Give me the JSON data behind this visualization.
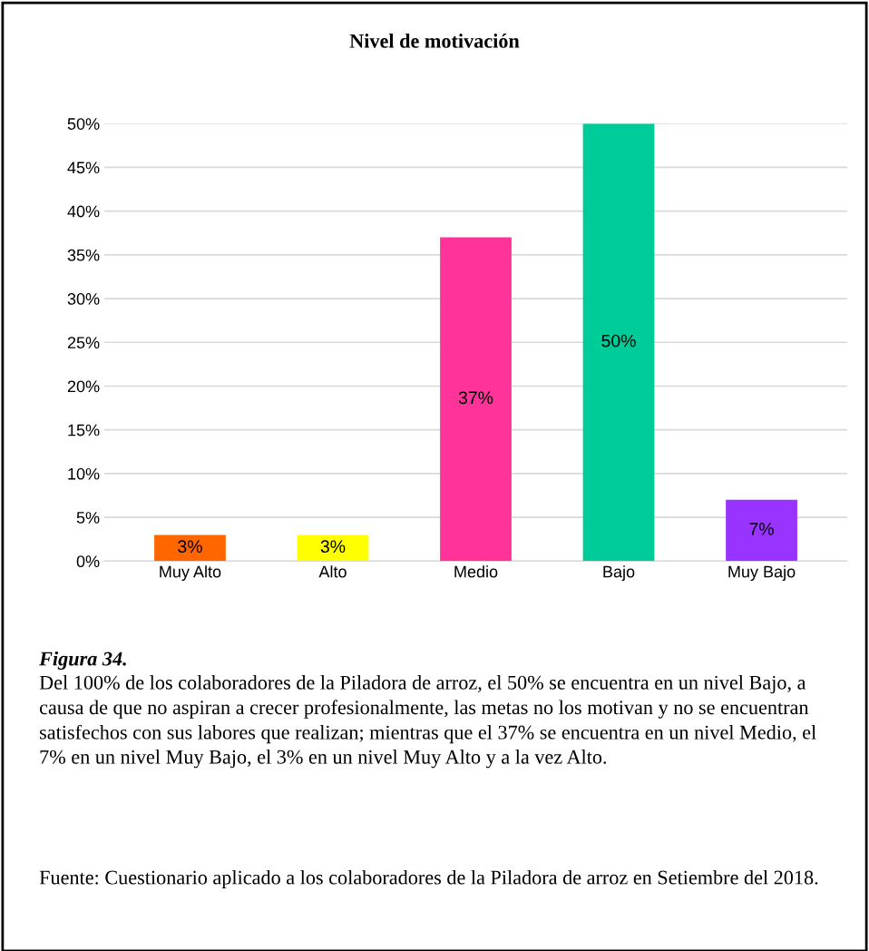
{
  "chart_data": {
    "type": "bar",
    "title": "Nivel de motivación",
    "categories": [
      "Muy Alto",
      "Alto",
      "Medio",
      "Bajo",
      "Muy Bajo"
    ],
    "values": [
      3,
      3,
      37,
      50,
      7
    ],
    "colors": [
      "#ff6600",
      "#ffff00",
      "#ff3399",
      "#00cc99",
      "#9933ff"
    ],
    "value_labels": [
      "3%",
      "3%",
      "37%",
      "50%",
      "7%"
    ],
    "ylim": [
      0,
      50
    ],
    "yticks": [
      {
        "value": 0,
        "label": "0%"
      },
      {
        "value": 5,
        "label": "5%"
      },
      {
        "value": 10,
        "label": "10%"
      },
      {
        "value": 15,
        "label": "15%"
      },
      {
        "value": 20,
        "label": "20%"
      },
      {
        "value": 25,
        "label": "25%"
      },
      {
        "value": 30,
        "label": "30%"
      },
      {
        "value": 35,
        "label": "35%"
      },
      {
        "value": 40,
        "label": "40%"
      },
      {
        "value": 45,
        "label": "45%"
      },
      {
        "value": 50,
        "label": "50%"
      }
    ],
    "grid": "y",
    "legend": false,
    "annotations": [
      "Figura 34.",
      "Del 100% de los colaboradores de la Piladora de arroz, el 50% se encuentra en un nivel Bajo, a causa de que no aspiran a crecer profesionalmente, las metas no los motivan y no se encuentran satisfechos con sus labores que realizan; mientras que el 37% se encuentra en un nivel Medio, el 7% en un nivel Muy Bajo, el 3% en un nivel Muy Alto y a la vez Alto.",
      "Fuente: Cuestionario aplicado a los colaboradores de la Piladora de arroz en Setiembre del 2018."
    ]
  }
}
